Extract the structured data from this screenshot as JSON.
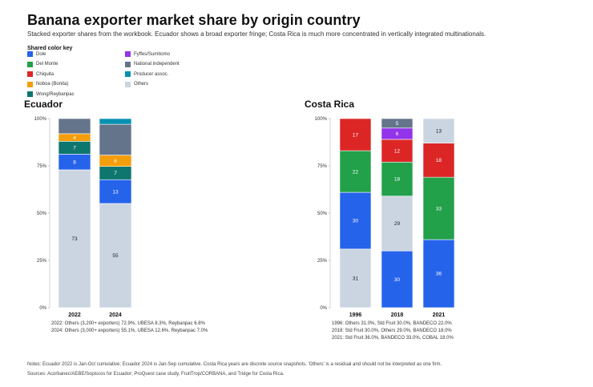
{
  "title": "Banana exporter market share by origin country",
  "subtitle": "Stacked exporter shares from the workbook. Ecuador shows a broad exporter fringe; Costa Rica is much more concentrated in vertically integrated multinationals.",
  "legend": {
    "title": "Shared color key",
    "items": [
      {
        "label": "Dole",
        "color": "#2563eb"
      },
      {
        "label": "Del Monte",
        "color": "#22a04a"
      },
      {
        "label": "Chiquita",
        "color": "#dc2626"
      },
      {
        "label": "Noboa (Bonita)",
        "color": "#f59e0b"
      },
      {
        "label": "Wong/Reybanpac",
        "color": "#0f766e"
      },
      {
        "label": "Fyffes/Sumitomo",
        "color": "#9333ea"
      },
      {
        "label": "National independent",
        "color": "#64748b"
      },
      {
        "label": "Producer assoc.",
        "color": "#0891b2"
      },
      {
        "label": "Others",
        "color": "#cbd5e1"
      }
    ]
  },
  "chart_data": [
    {
      "type": "bar",
      "stacked": true,
      "title": "Ecuador",
      "categories": [
        "2022",
        "2024"
      ],
      "ylim": [
        0,
        100
      ],
      "yticks": [
        "0%",
        "25%",
        "50%",
        "75%",
        "100%"
      ],
      "series": [
        {
          "name": "Others",
          "values": [
            72.9,
            55.1
          ],
          "labels": [
            "73",
            "55"
          ]
        },
        {
          "name": "Dole",
          "values": [
            8.3,
            12.6
          ],
          "labels": [
            "8",
            "13"
          ]
        },
        {
          "name": "Wong/Reybanpac",
          "values": [
            6.8,
            7.0
          ],
          "labels": [
            "7",
            "7"
          ]
        },
        {
          "name": "Noboa (Bonita)",
          "values": [
            4.0,
            6.0
          ],
          "labels": [
            "4",
            "6"
          ]
        },
        {
          "name": "National independent",
          "values": [
            8.0,
            16.3
          ],
          "labels": [
            "",
            ""
          ]
        },
        {
          "name": "Producer assoc.",
          "values": [
            0,
            3.0
          ],
          "labels": [
            "",
            ""
          ]
        }
      ],
      "notes": [
        "2022: Others (3,200+ exporters) 72.9%, UBESA 8.3%, Reybanpac 6.8%",
        "2024: Others (3,000+ exporters) 55.1%, UBESA 12.6%, Reybanpac 7.0%"
      ]
    },
    {
      "type": "bar",
      "stacked": true,
      "title": "Costa Rica",
      "categories": [
        "1996",
        "2018",
        "2021"
      ],
      "ylim": [
        0,
        100
      ],
      "yticks": [
        "0%",
        "25%",
        "50%",
        "75%",
        "100%"
      ],
      "series": [
        {
          "name": "Others",
          "values": [
            31,
            29,
            13
          ],
          "labels": [
            "31",
            "29",
            "13"
          ],
          "stack_order": [
            0,
            1,
            3
          ]
        },
        {
          "name": "Dole",
          "values": [
            30,
            30,
            36
          ],
          "labels": [
            "30",
            "30",
            "36"
          ],
          "stack_order": [
            1,
            0,
            0
          ]
        },
        {
          "name": "Del Monte",
          "values": [
            22,
            18,
            33
          ],
          "labels": [
            "22",
            "18",
            "33"
          ],
          "stack_order": [
            2,
            2,
            1
          ]
        },
        {
          "name": "Chiquita",
          "values": [
            17,
            12,
            18
          ],
          "labels": [
            "17",
            "12",
            "18"
          ],
          "stack_order": [
            3,
            3,
            2
          ]
        },
        {
          "name": "Fyffes/Sumitomo",
          "values": [
            0,
            6,
            0
          ],
          "labels": [
            "",
            "6",
            ""
          ],
          "stack_order": [
            4,
            4,
            4
          ]
        },
        {
          "name": "National independent",
          "values": [
            0,
            5,
            0
          ],
          "labels": [
            "",
            "5",
            ""
          ],
          "stack_order": [
            5,
            5,
            5
          ]
        }
      ],
      "notes": [
        "1996: Others 31.0%, Std Fruit 30.0%, BANDECO 22.0%",
        "2018: Std Fruit 30.0%, Others 29.0%, BANDECO 18.0%",
        "2021: Std Fruit 36.0%, BANDECO 33.0%, COBAL 18.0%"
      ]
    }
  ],
  "footer": {
    "notes": "Notes: Ecuador 2022 is Jan-Oct cumulative; Ecuador 2024 is Jan-Sep cumulative. Costa Rica years are discrete source snapshots. 'Others' is a residual and should not be interpreted as one firm.",
    "sources": "Sources: Acorbanec/AEBE/Sopiscos for Ecuador; ProQuest case study, FruitTrop/CORBANA, and Tridge for Costa Rica."
  }
}
